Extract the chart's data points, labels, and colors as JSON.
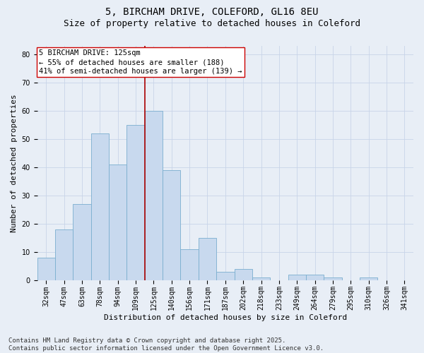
{
  "title_line1": "5, BIRCHAM DRIVE, COLEFORD, GL16 8EU",
  "title_line2": "Size of property relative to detached houses in Coleford",
  "xlabel": "Distribution of detached houses by size in Coleford",
  "ylabel": "Number of detached properties",
  "categories": [
    "32sqm",
    "47sqm",
    "63sqm",
    "78sqm",
    "94sqm",
    "109sqm",
    "125sqm",
    "140sqm",
    "156sqm",
    "171sqm",
    "187sqm",
    "202sqm",
    "218sqm",
    "233sqm",
    "249sqm",
    "264sqm",
    "279sqm",
    "295sqm",
    "310sqm",
    "326sqm",
    "341sqm"
  ],
  "values": [
    8,
    18,
    27,
    52,
    41,
    55,
    60,
    39,
    11,
    15,
    3,
    4,
    1,
    0,
    2,
    2,
    1,
    0,
    1,
    0,
    0
  ],
  "bar_color": "#c8d9ee",
  "bar_edge_color": "#7aaecf",
  "vline_index": 6,
  "vline_color": "#aa0000",
  "annotation_line1": "5 BIRCHAM DRIVE: 125sqm",
  "annotation_line2": "← 55% of detached houses are smaller (188)",
  "annotation_line3": "41% of semi-detached houses are larger (139) →",
  "annotation_box_color": "#ffffff",
  "annotation_box_edge_color": "#cc0000",
  "ylim": [
    0,
    83
  ],
  "yticks": [
    0,
    10,
    20,
    30,
    40,
    50,
    60,
    70,
    80
  ],
  "grid_color": "#c8d4e8",
  "background_color": "#e8eef6",
  "footer_line1": "Contains HM Land Registry data © Crown copyright and database right 2025.",
  "footer_line2": "Contains public sector information licensed under the Open Government Licence v3.0.",
  "title_fontsize": 10,
  "subtitle_fontsize": 9,
  "axis_label_fontsize": 8,
  "tick_fontsize": 7,
  "annotation_fontsize": 7.5,
  "footer_fontsize": 6.5
}
